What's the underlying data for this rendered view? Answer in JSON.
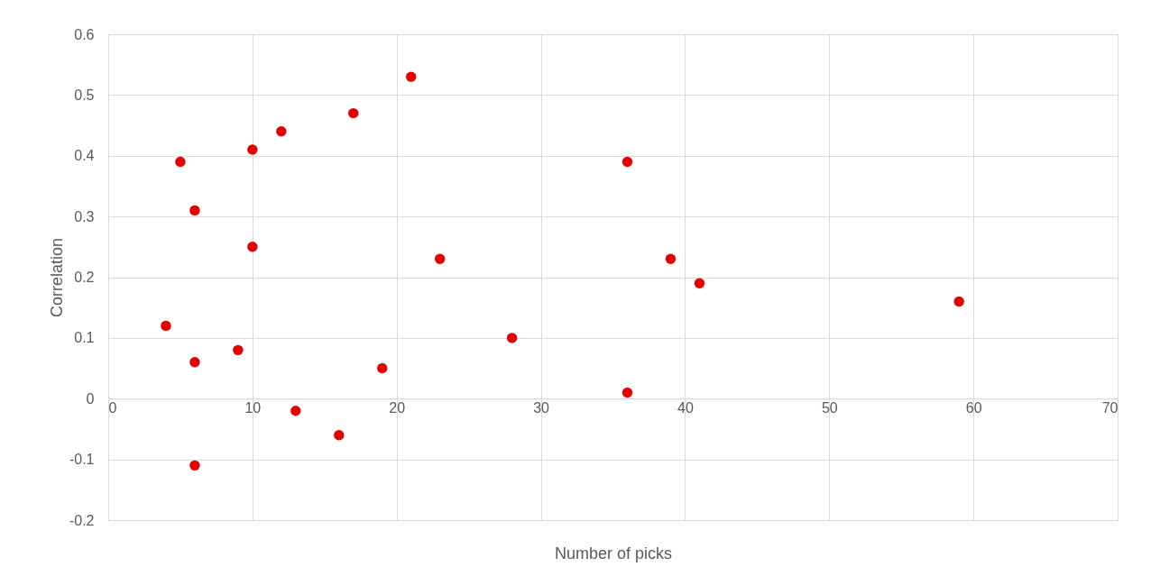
{
  "chart_data": {
    "type": "scatter",
    "xlabel": "Number of picks",
    "ylabel": "Correlation",
    "x": [
      5,
      6,
      10,
      12,
      17,
      21,
      36,
      10,
      23,
      39,
      41,
      59,
      4,
      6,
      9,
      19,
      28,
      36,
      13,
      16,
      6
    ],
    "series": [
      {
        "color": "#e60000",
        "values": [
          0.39,
          0.31,
          0.41,
          0.44,
          0.47,
          0.53,
          0.39,
          0.25,
          0.23,
          0.23,
          0.19,
          0.16,
          0.12,
          0.06,
          0.08,
          0.05,
          0.1,
          0.01,
          -0.02,
          -0.06,
          -0.11
        ]
      }
    ],
    "xlim": [
      0,
      70
    ],
    "xticks": [
      0,
      10,
      20,
      30,
      40,
      50,
      60,
      70
    ],
    "ylim": [
      -0.2,
      0.6
    ],
    "yticks": [
      -0.2,
      -0.1,
      0,
      0.1,
      0.2,
      0.3,
      0.4,
      0.5,
      0.6
    ],
    "grid": true,
    "marker": "circle"
  }
}
